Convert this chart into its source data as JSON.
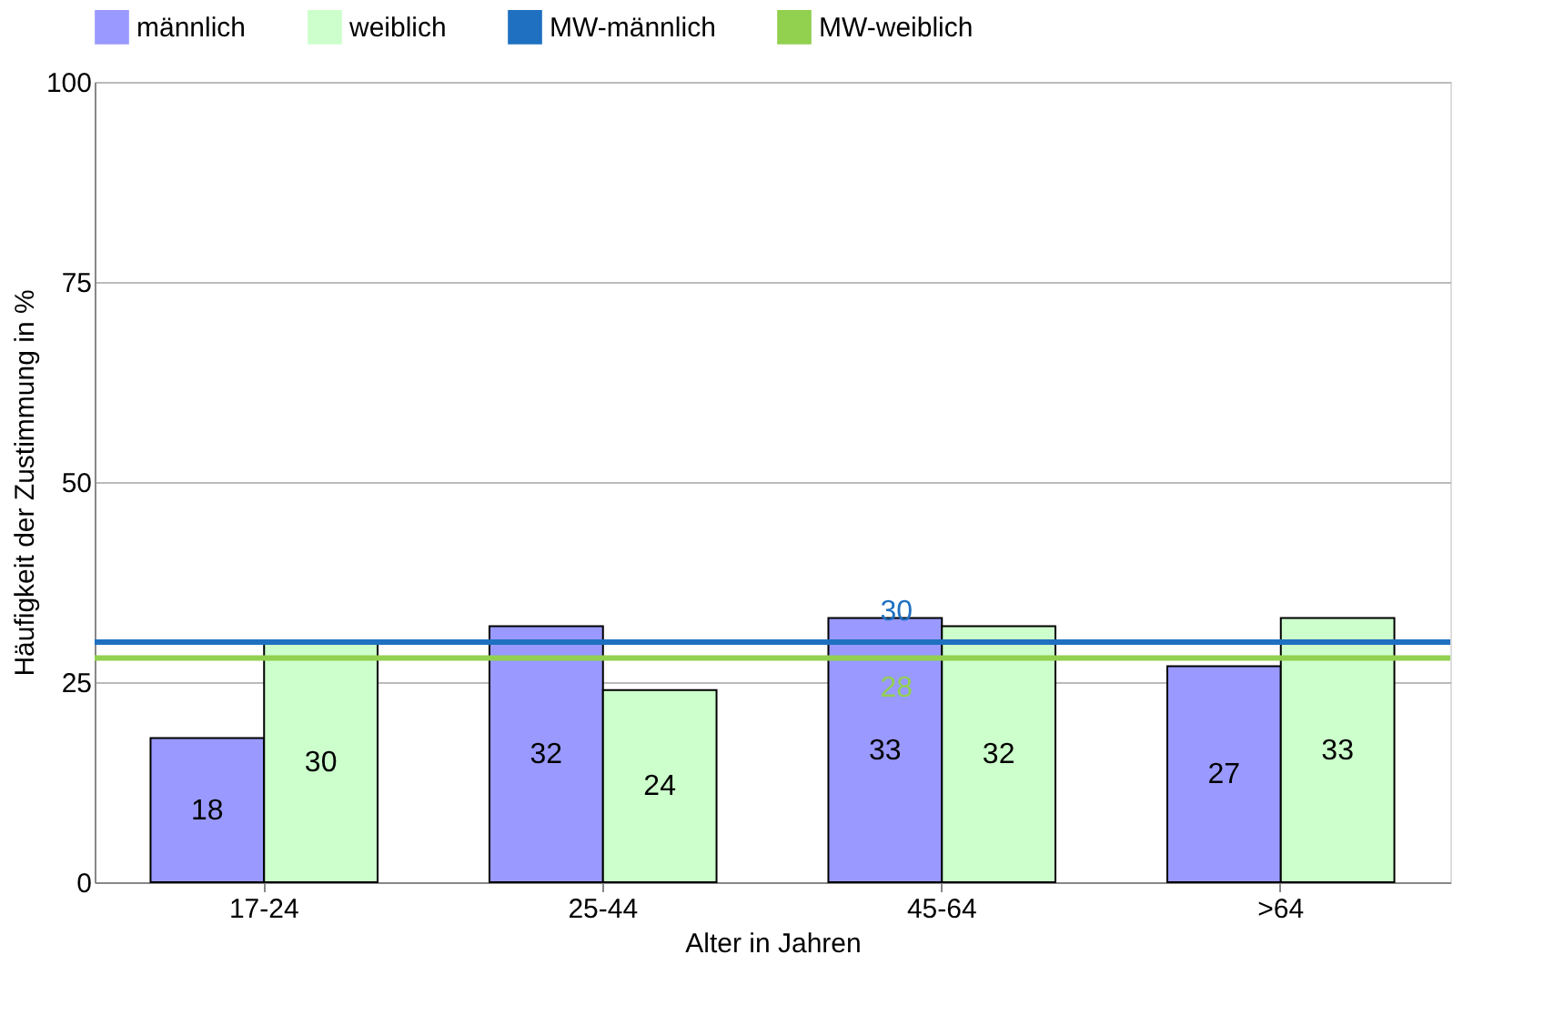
{
  "chart_data": {
    "type": "bar",
    "xlabel": "Alter in Jahren",
    "ylabel": "Häufigkeit der Zustimmung in %",
    "categories": [
      "17-24",
      "25-44",
      "45-64",
      ">64"
    ],
    "series": [
      {
        "name": "männlich",
        "color": "#9999ff",
        "values": [
          18,
          32,
          33,
          27
        ]
      },
      {
        "name": "weiblich",
        "color": "#ccffcc",
        "values": [
          30,
          24,
          32,
          33
        ]
      }
    ],
    "ref_lines": [
      {
        "axis": "y",
        "value": 30,
        "label": "MW-männlich",
        "color": "#1f70c1"
      },
      {
        "axis": "y",
        "value": 28,
        "label": "MW-weiblich",
        "color": "#92d050"
      }
    ],
    "annotations": [
      {
        "text": "30",
        "x": "45-64",
        "y": 30
      },
      {
        "text": "28",
        "x": "45-64",
        "y": 28
      }
    ],
    "ylim": [
      0,
      100
    ],
    "yticks": [
      0,
      25,
      50,
      75,
      100
    ],
    "grid": "y",
    "legend": "top",
    "data_labels": true
  }
}
